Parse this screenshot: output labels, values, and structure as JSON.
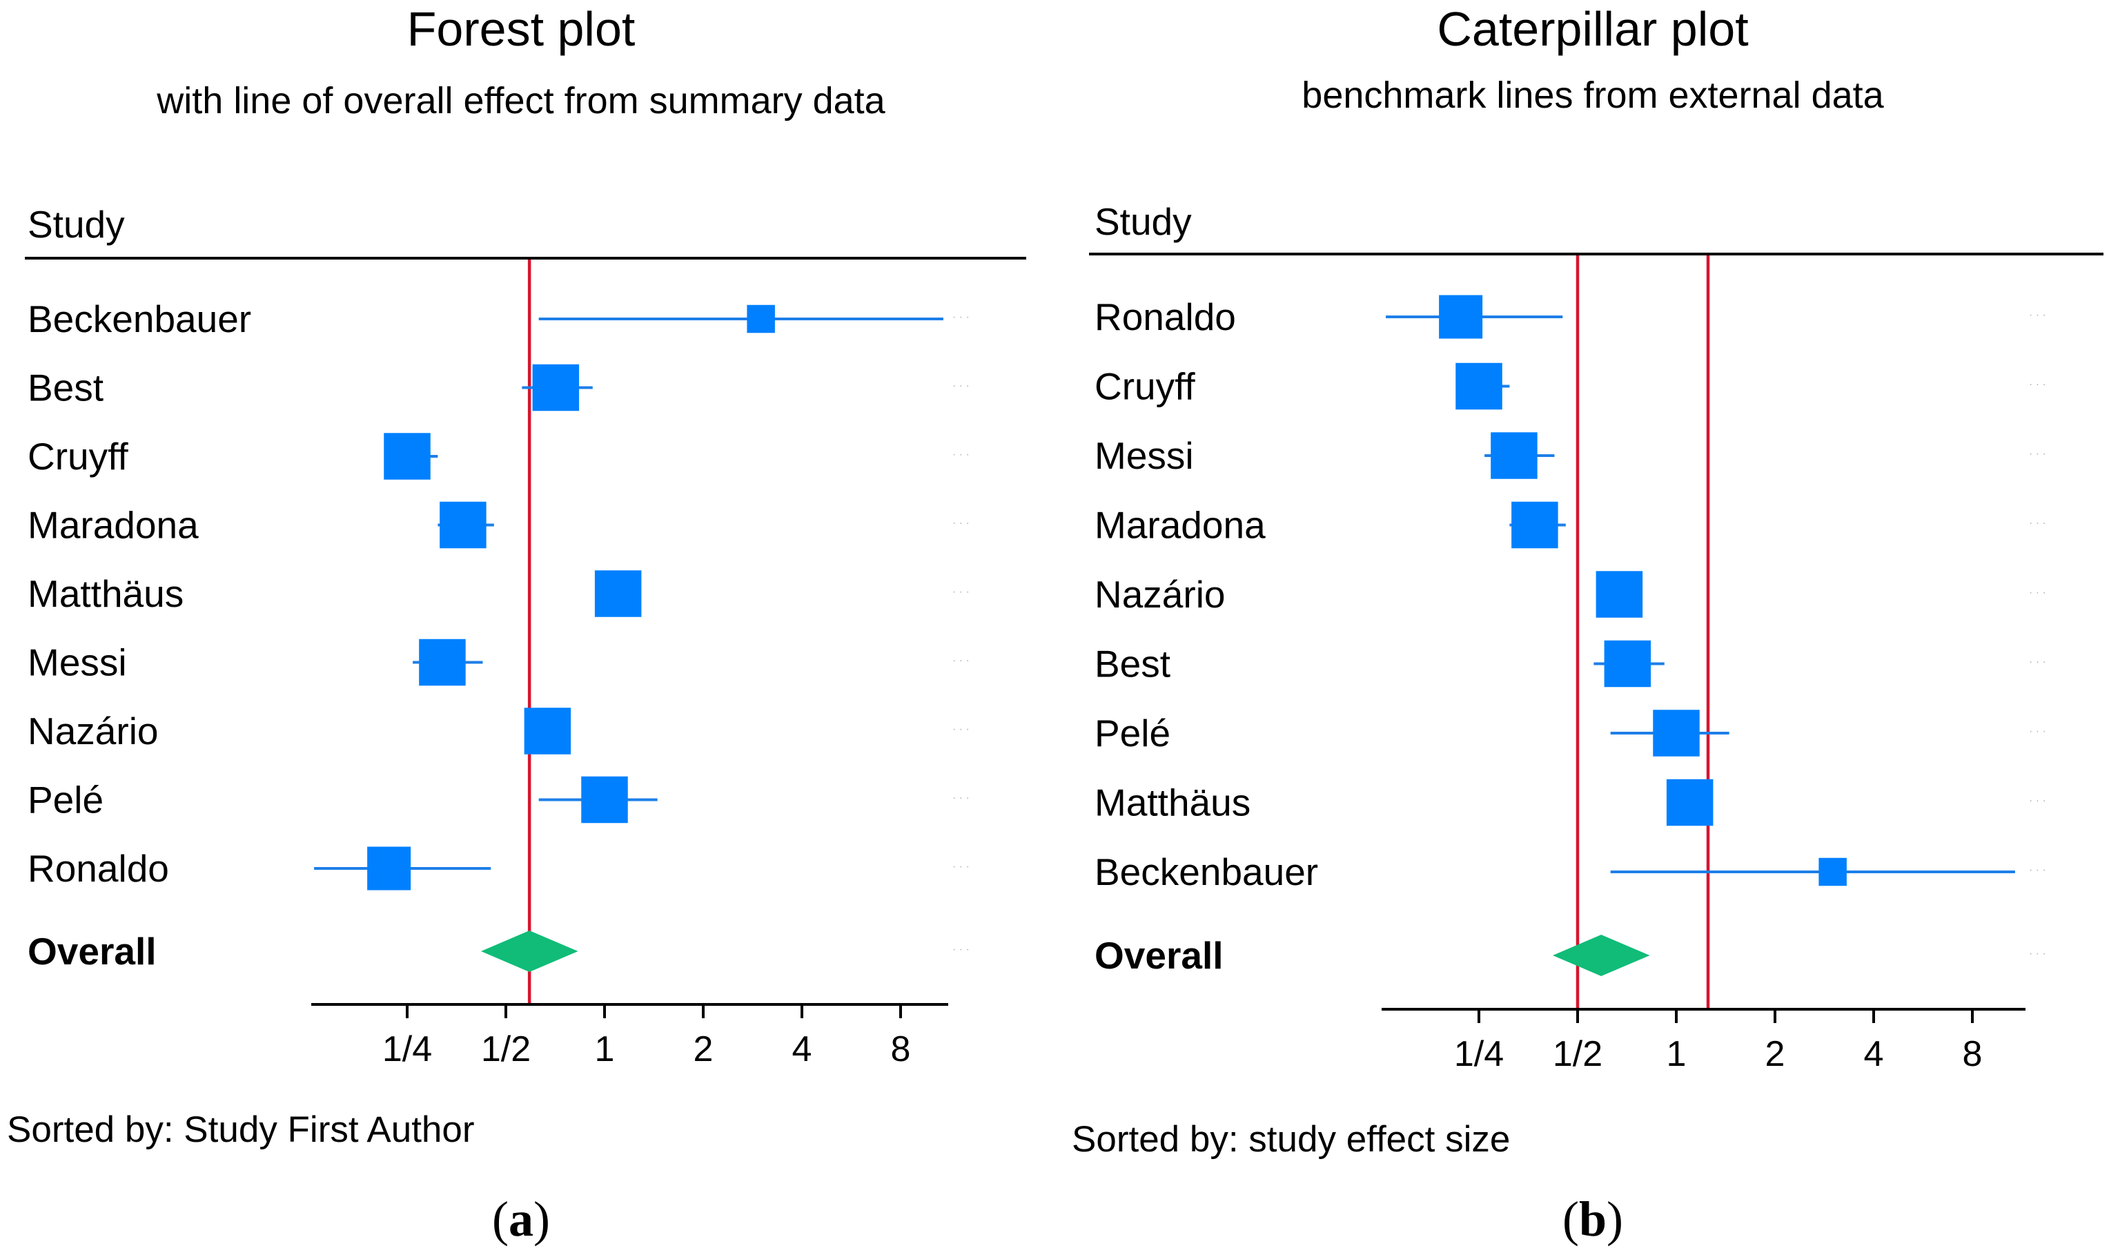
{
  "figure": {
    "panel_a_caption": "a",
    "panel_b_caption": "b"
  },
  "chart_data": [
    {
      "type": "forest",
      "title": "Forest plot",
      "subtitle": "with line of overall effect from summary data",
      "column_header": "Study",
      "x_scale": "log2",
      "xlim": [
        0.125,
        11.3
      ],
      "x_ticks": [
        0.25,
        0.5,
        1,
        2,
        4,
        8
      ],
      "x_tick_labels": [
        "1/4",
        "1/2",
        "1",
        "2",
        "4",
        "8"
      ],
      "reference_lines": [
        0.59
      ],
      "sorted_by_label": "Sorted by: Study First Author",
      "studies": [
        {
          "label": "Beckenbauer",
          "estimate": 3.0,
          "ci": [
            0.63,
            10.8
          ],
          "weight": 0.45
        },
        {
          "label": "Best",
          "estimate": 0.71,
          "ci": [
            0.56,
            0.92
          ],
          "weight": 0.75
        },
        {
          "label": "Cruyff",
          "estimate": 0.25,
          "ci": [
            0.215,
            0.31
          ],
          "weight": 0.75
        },
        {
          "label": "Maradona",
          "estimate": 0.37,
          "ci": [
            0.31,
            0.46
          ],
          "weight": 0.75
        },
        {
          "label": "Matthäus",
          "estimate": 1.1,
          "ci": [
            1.1,
            1.1
          ],
          "weight": 0.75
        },
        {
          "label": "Messi",
          "estimate": 0.32,
          "ci": [
            0.26,
            0.425
          ],
          "weight": 0.75
        },
        {
          "label": "Nazário",
          "estimate": 0.67,
          "ci": [
            0.67,
            0.67
          ],
          "weight": 0.75
        },
        {
          "label": "Pelé",
          "estimate": 1.0,
          "ci": [
            0.63,
            1.45
          ],
          "weight": 0.75
        },
        {
          "label": "Ronaldo",
          "estimate": 0.22,
          "ci": [
            0.13,
            0.45
          ],
          "weight": 0.7
        }
      ],
      "overall": {
        "label": "Overall",
        "estimate": 0.59,
        "ci": [
          0.42,
          0.83
        ]
      }
    },
    {
      "type": "caterpillar",
      "title": "Caterpillar plot",
      "subtitle": "benchmark lines from external data",
      "column_header": "Study",
      "x_scale": "log2",
      "xlim": [
        0.125,
        11.3
      ],
      "x_ticks": [
        0.25,
        0.5,
        1,
        2,
        4,
        8
      ],
      "x_tick_labels": [
        "1/4",
        "1/2",
        "1",
        "2",
        "4",
        "8"
      ],
      "reference_lines": [
        0.5,
        1.25
      ],
      "sorted_by_label": "Sorted by: study effect size",
      "studies": [
        {
          "label": "Ronaldo",
          "estimate": 0.22,
          "ci": [
            0.13,
            0.45
          ],
          "weight": 0.7
        },
        {
          "label": "Cruyff",
          "estimate": 0.25,
          "ci": [
            0.215,
            0.31
          ],
          "weight": 0.75
        },
        {
          "label": "Messi",
          "estimate": 0.32,
          "ci": [
            0.26,
            0.425
          ],
          "weight": 0.75
        },
        {
          "label": "Maradona",
          "estimate": 0.37,
          "ci": [
            0.31,
            0.46
          ],
          "weight": 0.75
        },
        {
          "label": "Nazário",
          "estimate": 0.67,
          "ci": [
            0.67,
            0.67
          ],
          "weight": 0.75
        },
        {
          "label": "Best",
          "estimate": 0.71,
          "ci": [
            0.56,
            0.92
          ],
          "weight": 0.75
        },
        {
          "label": "Pelé",
          "estimate": 1.0,
          "ci": [
            0.63,
            1.45
          ],
          "weight": 0.75
        },
        {
          "label": "Matthäus",
          "estimate": 1.1,
          "ci": [
            1.1,
            1.1
          ],
          "weight": 0.75
        },
        {
          "label": "Beckenbauer",
          "estimate": 3.0,
          "ci": [
            0.63,
            10.8
          ],
          "weight": 0.45
        }
      ],
      "overall": {
        "label": "Overall",
        "estimate": 0.59,
        "ci": [
          0.42,
          0.83
        ]
      }
    }
  ],
  "colors": {
    "marker": "#0080FF",
    "ci_line": "#1E7FE8",
    "diamond": "#10BC78",
    "reference": "#D5162F",
    "axis": "#000000",
    "text": "#000000",
    "dots": "#B4B4B4"
  }
}
